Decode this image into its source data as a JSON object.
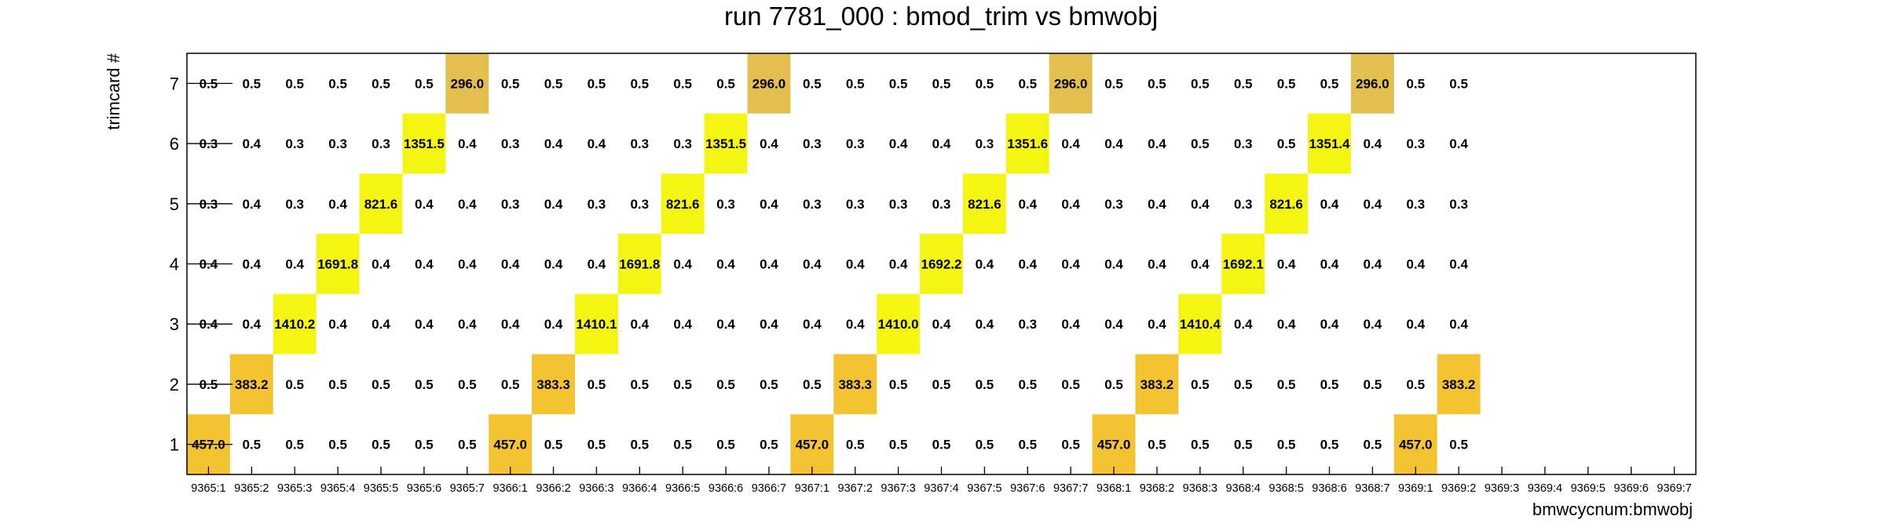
{
  "chart_data": {
    "type": "heatmap",
    "title": "run 7781_000 : bmod_trim vs bmwobj",
    "xlabel": "bmwcycnum:bmwobj",
    "ylabel": "trimcard #",
    "x_categories": [
      "9365:1",
      "9365:2",
      "9365:3",
      "9365:4",
      "9365:5",
      "9365:6",
      "9365:7",
      "9366:1",
      "9366:2",
      "9366:3",
      "9366:4",
      "9366:5",
      "9366:6",
      "9366:7",
      "9367:1",
      "9367:2",
      "9367:3",
      "9367:4",
      "9367:5",
      "9367:6",
      "9367:7",
      "9368:1",
      "9368:2",
      "9368:3",
      "9368:4",
      "9368:5",
      "9368:6",
      "9368:7",
      "9369:1",
      "9369:2",
      "9369:3",
      "9369:4",
      "9369:5",
      "9369:6",
      "9369:7"
    ],
    "y_categories": [
      "1",
      "2",
      "3",
      "4",
      "5",
      "6",
      "7"
    ],
    "z": [
      [
        "457.0",
        "0.5",
        "0.5",
        "0.5",
        "0.5",
        "0.5",
        "0.5",
        "457.0",
        "0.5",
        "0.5",
        "0.5",
        "0.5",
        "0.5",
        "0.5",
        "457.0",
        "0.5",
        "0.5",
        "0.5",
        "0.5",
        "0.5",
        "0.5",
        "457.0",
        "0.5",
        "0.5",
        "0.5",
        "0.5",
        "0.5",
        "0.5",
        "457.0",
        "0.5",
        "",
        "",
        "",
        "",
        ""
      ],
      [
        "0.5",
        "383.2",
        "0.5",
        "0.5",
        "0.5",
        "0.5",
        "0.5",
        "0.5",
        "383.3",
        "0.5",
        "0.5",
        "0.5",
        "0.5",
        "0.5",
        "0.5",
        "383.3",
        "0.5",
        "0.5",
        "0.5",
        "0.5",
        "0.5",
        "0.5",
        "383.2",
        "0.5",
        "0.5",
        "0.5",
        "0.5",
        "0.5",
        "0.5",
        "383.2",
        "",
        "",
        "",
        "",
        ""
      ],
      [
        "0.4",
        "0.4",
        "1410.2",
        "0.4",
        "0.4",
        "0.4",
        "0.4",
        "0.4",
        "0.4",
        "1410.1",
        "0.4",
        "0.4",
        "0.4",
        "0.4",
        "0.4",
        "0.4",
        "1410.0",
        "0.4",
        "0.4",
        "0.3",
        "0.4",
        "0.4",
        "0.4",
        "1410.4",
        "0.4",
        "0.4",
        "0.4",
        "0.4",
        "0.4",
        "0.4",
        "",
        "",
        "",
        "",
        ""
      ],
      [
        "0.4",
        "0.4",
        "0.4",
        "1691.8",
        "0.4",
        "0.4",
        "0.4",
        "0.4",
        "0.4",
        "0.4",
        "1691.8",
        "0.4",
        "0.4",
        "0.4",
        "0.4",
        "0.4",
        "0.4",
        "1692.2",
        "0.4",
        "0.4",
        "0.4",
        "0.4",
        "0.4",
        "0.4",
        "1692.1",
        "0.4",
        "0.4",
        "0.4",
        "0.4",
        "0.4",
        "",
        "",
        "",
        "",
        ""
      ],
      [
        "0.3",
        "0.4",
        "0.3",
        "0.4",
        "821.6",
        "0.4",
        "0.4",
        "0.3",
        "0.4",
        "0.3",
        "0.3",
        "821.6",
        "0.3",
        "0.4",
        "0.3",
        "0.3",
        "0.3",
        "0.3",
        "821.6",
        "0.4",
        "0.4",
        "0.3",
        "0.4",
        "0.4",
        "0.3",
        "821.6",
        "0.4",
        "0.4",
        "0.3",
        "0.3",
        "",
        "",
        "",
        "",
        ""
      ],
      [
        "0.3",
        "0.4",
        "0.3",
        "0.3",
        "0.3",
        "1351.5",
        "0.4",
        "0.3",
        "0.4",
        "0.4",
        "0.3",
        "0.3",
        "1351.5",
        "0.4",
        "0.3",
        "0.3",
        "0.4",
        "0.4",
        "0.3",
        "1351.6",
        "0.4",
        "0.4",
        "0.4",
        "0.5",
        "0.3",
        "0.5",
        "1351.4",
        "0.4",
        "0.3",
        "0.4",
        "",
        "",
        "",
        "",
        ""
      ],
      [
        "0.5",
        "0.5",
        "0.5",
        "0.5",
        "0.5",
        "0.5",
        "296.0",
        "0.5",
        "0.5",
        "0.5",
        "0.5",
        "0.5",
        "0.5",
        "296.0",
        "0.5",
        "0.5",
        "0.5",
        "0.5",
        "0.5",
        "0.5",
        "296.0",
        "0.5",
        "0.5",
        "0.5",
        "0.5",
        "0.5",
        "0.5",
        "296.0",
        "0.5",
        "0.5",
        "",
        "",
        "",
        "",
        ""
      ]
    ],
    "colors": {
      "yellow": "#f5f513",
      "orange": "#f4c331",
      "darkorange": "#e2bf4e",
      "frame": "#000000"
    },
    "grid": false,
    "legend": "none"
  }
}
